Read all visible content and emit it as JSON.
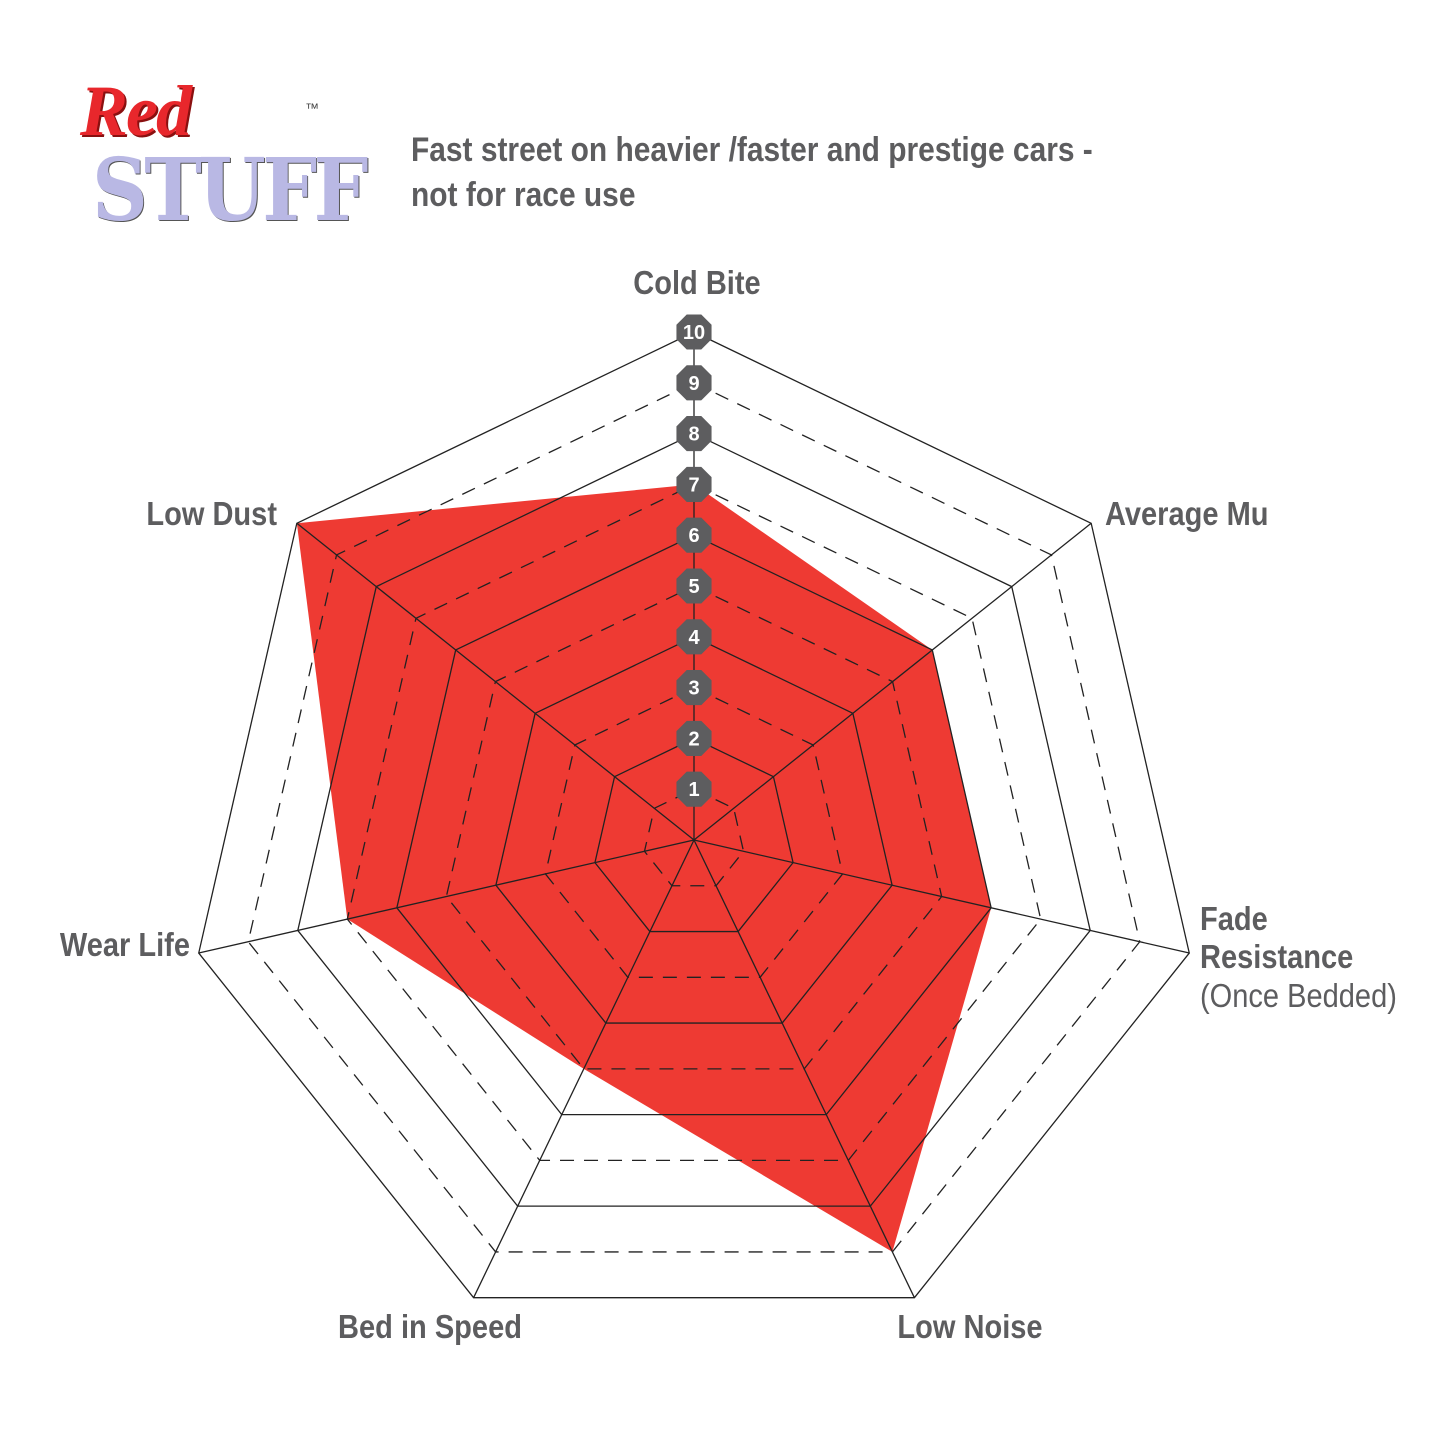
{
  "logo": {
    "text_top": "Red",
    "text_bottom": "STUFF",
    "trademark": "™"
  },
  "subtitle": "Fast street on heavier /faster and prestige cars - not for race use",
  "colors": {
    "fill": "#ee3a33",
    "text": "#5d5d5f",
    "badge": "#5d5d5f",
    "grid": "#222222"
  },
  "chart_data": {
    "type": "radar",
    "axes": [
      "Cold Bite",
      "Average Mu",
      "Fade Resistance",
      "Low Noise",
      "Bed in Speed",
      "Wear Life",
      "Low Dust"
    ],
    "axis_sublabels": {
      "Fade Resistance": "(Once Bedded)"
    },
    "values": [
      7,
      6,
      6,
      9,
      5,
      7,
      10
    ],
    "range": [
      0,
      10
    ],
    "ticks": [
      1,
      2,
      3,
      4,
      5,
      6,
      7,
      8,
      9,
      10
    ],
    "grid": "even levels solid, odd levels dashed"
  }
}
